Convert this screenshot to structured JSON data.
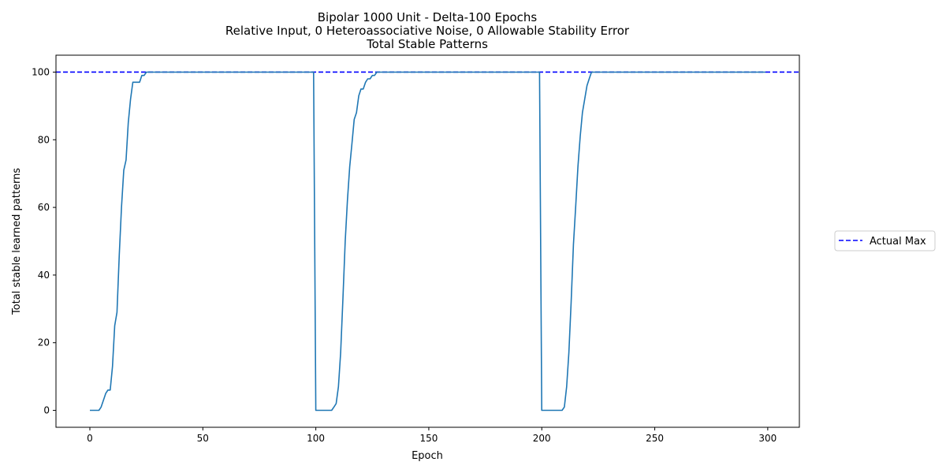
{
  "chart_data": {
    "type": "line",
    "title_lines": [
      "Bipolar 1000 Unit - Delta-100 Epochs",
      "Relative Input, 0 Heteroassociative Noise, 0 Allowable Stability Error",
      "Total Stable Patterns"
    ],
    "xlabel": "Epoch",
    "ylabel": "Total stable learned patterns",
    "xlim": [
      -15,
      314
    ],
    "ylim": [
      -5,
      105
    ],
    "x_ticks": [
      0,
      50,
      100,
      150,
      200,
      250,
      300
    ],
    "y_ticks": [
      0,
      20,
      40,
      60,
      80,
      100
    ],
    "grid": false,
    "legend": {
      "placement": "right, outside plot",
      "entries": [
        "Actual Max"
      ]
    },
    "reference_lines": [
      {
        "name": "Actual Max",
        "y": 100,
        "style": "dashed",
        "color": "#0000ff"
      }
    ],
    "series": [
      {
        "color": "#1f77b4",
        "points": [
          [
            0,
            0
          ],
          [
            1,
            0
          ],
          [
            2,
            0
          ],
          [
            3,
            0
          ],
          [
            4,
            0
          ],
          [
            5,
            1
          ],
          [
            6,
            3
          ],
          [
            7,
            5
          ],
          [
            8,
            6
          ],
          [
            9,
            6
          ],
          [
            10,
            13
          ],
          [
            11,
            25
          ],
          [
            12,
            29
          ],
          [
            13,
            46
          ],
          [
            14,
            60
          ],
          [
            15,
            71
          ],
          [
            16,
            74
          ],
          [
            17,
            85
          ],
          [
            18,
            92
          ],
          [
            19,
            97
          ],
          [
            20,
            97
          ],
          [
            21,
            97
          ],
          [
            22,
            97
          ],
          [
            23,
            99
          ],
          [
            24,
            99
          ],
          [
            25,
            100
          ],
          [
            26,
            100
          ],
          [
            50,
            100
          ],
          [
            99,
            100
          ],
          [
            100,
            0
          ],
          [
            101,
            0
          ],
          [
            102,
            0
          ],
          [
            103,
            0
          ],
          [
            104,
            0
          ],
          [
            105,
            0
          ],
          [
            106,
            0
          ],
          [
            107,
            0
          ],
          [
            108,
            1
          ],
          [
            109,
            2
          ],
          [
            110,
            7
          ],
          [
            111,
            17
          ],
          [
            112,
            33
          ],
          [
            113,
            50
          ],
          [
            114,
            62
          ],
          [
            115,
            72
          ],
          [
            116,
            79
          ],
          [
            117,
            86
          ],
          [
            118,
            88
          ],
          [
            119,
            93
          ],
          [
            120,
            95
          ],
          [
            121,
            95
          ],
          [
            122,
            97
          ],
          [
            123,
            98
          ],
          [
            124,
            98
          ],
          [
            125,
            99
          ],
          [
            126,
            99
          ],
          [
            127,
            100
          ],
          [
            128,
            100
          ],
          [
            150,
            100
          ],
          [
            199,
            100
          ],
          [
            200,
            0
          ],
          [
            201,
            0
          ],
          [
            202,
            0
          ],
          [
            203,
            0
          ],
          [
            204,
            0
          ],
          [
            205,
            0
          ],
          [
            206,
            0
          ],
          [
            207,
            0
          ],
          [
            208,
            0
          ],
          [
            209,
            0
          ],
          [
            210,
            1
          ],
          [
            211,
            7
          ],
          [
            212,
            17
          ],
          [
            213,
            32
          ],
          [
            214,
            49
          ],
          [
            215,
            60
          ],
          [
            216,
            72
          ],
          [
            217,
            81
          ],
          [
            218,
            88
          ],
          [
            219,
            92
          ],
          [
            220,
            96
          ],
          [
            221,
            98
          ],
          [
            222,
            100
          ],
          [
            223,
            100
          ],
          [
            250,
            100
          ],
          [
            299,
            100
          ]
        ]
      }
    ]
  }
}
